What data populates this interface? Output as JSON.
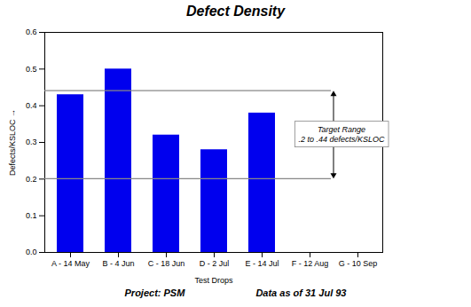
{
  "chart_data": {
    "type": "bar",
    "title": "Defect Density",
    "categories": [
      "A - 14 May",
      "B - 4 Jun",
      "C - 18 Jun",
      "D - 2 Jul",
      "E - 14 Jul",
      "F - 12 Aug",
      "G - 10 Sep"
    ],
    "values": [
      0.43,
      0.5,
      0.32,
      0.28,
      0.38,
      0.0,
      0.0
    ],
    "color": "#0000EE",
    "xlabel": "Test Drops",
    "ylabel": "Defects/KSLOC",
    "ylim": [
      0.0,
      0.6
    ],
    "yticks": [
      {
        "value": 0.0,
        "label": "0.0"
      },
      0.1,
      0.2,
      0.3,
      0.4,
      0.5,
      0.6
    ],
    "target_upper": 0.44,
    "target_lower": 0.2,
    "annotation": "Target Range\n.2 to .44 defects/KSLOC",
    "footer": [
      "Project: PSM",
      "Data as of 31 Jul 93"
    ],
    "grid": false
  }
}
